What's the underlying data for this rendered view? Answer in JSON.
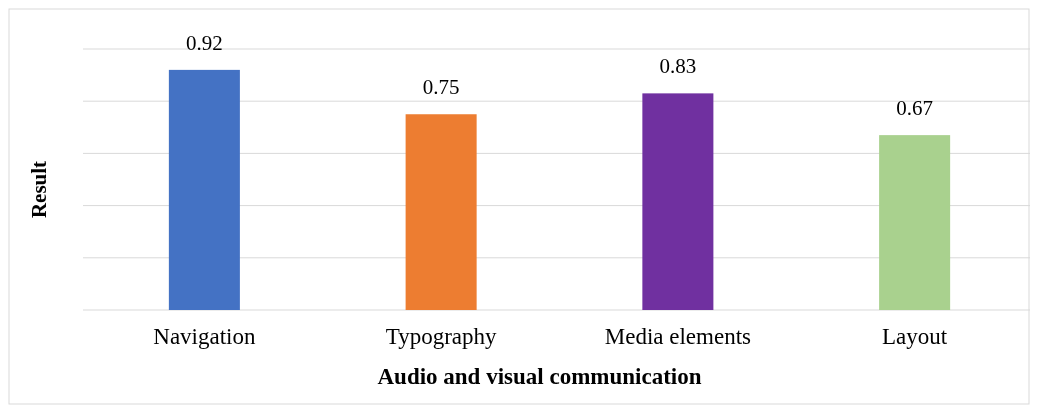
{
  "chart_data": {
    "type": "bar",
    "xlabel": "Audio and visual communication",
    "ylabel": "Result",
    "categories": [
      "Navigation",
      "Typography",
      "Media elements",
      "Layout"
    ],
    "values": [
      0.92,
      0.75,
      0.83,
      0.67
    ],
    "colors": [
      "#4472c4",
      "#ed7d31",
      "#7030a0",
      "#a9d18e"
    ],
    "ylim": [
      0,
      1
    ],
    "yticks": [
      {
        "value": 0,
        "label": null
      },
      {
        "value": 0.2,
        "label": null
      },
      {
        "value": 0.4,
        "label": null
      },
      {
        "value": 0.6,
        "label": null
      },
      {
        "value": 0.8,
        "label": null
      },
      {
        "value": 1,
        "label": null
      }
    ],
    "grid": "y",
    "tick_labels": "x",
    "data_labels": true
  }
}
